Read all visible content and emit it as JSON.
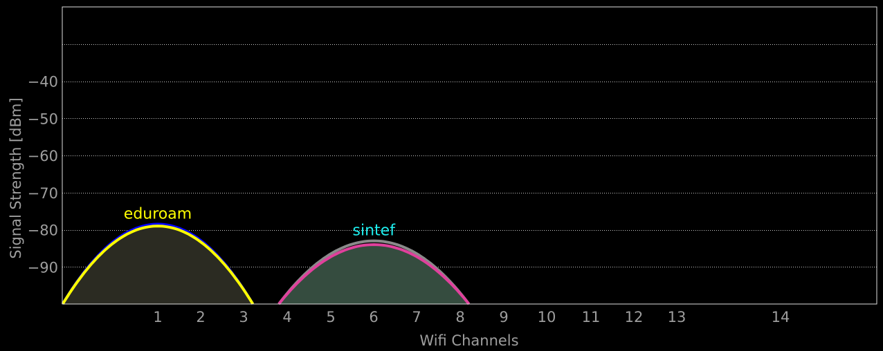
{
  "chart_data": {
    "type": "area",
    "xlabel": "Wifi Channels",
    "ylabel": "Signal Strength [dBm]",
    "xlim": [
      -1.25,
      16.65
    ],
    "ylim": [
      -100,
      -20
    ],
    "x_ticks": [
      "1",
      "2",
      "3",
      "4",
      "5",
      "6",
      "7",
      "8",
      "9",
      "10",
      "11",
      "12",
      "13",
      "14"
    ],
    "y_ticks": [
      "-90",
      "-80",
      "-70",
      "-60",
      "-50",
      "-40"
    ],
    "grid_lines_y": [
      -90,
      -80,
      -70,
      -60,
      -50,
      -40,
      -30
    ],
    "grid": true,
    "colors": {
      "background": "#000000",
      "frame": "#e0e0e0",
      "grid": "#cccccc",
      "tick_text": "#9e9e9e"
    },
    "series": [
      {
        "name": "eduroam",
        "channel": 1,
        "x_start": -1.2,
        "x_end": 3.2,
        "peak": -79,
        "outline_peak": -78.5,
        "color": "#ffff00",
        "outline_color": "#0000ff",
        "fill": "#2b2b22"
      },
      {
        "name": "sintef",
        "channel": 6,
        "x_start": 3.8,
        "x_end": 8.2,
        "peak": -84,
        "outline_peak": -83,
        "color": "#e0409c",
        "outline_color": "#8a8a8a",
        "fill": "#354c3f",
        "label_color": "#1ef0f0"
      }
    ]
  }
}
